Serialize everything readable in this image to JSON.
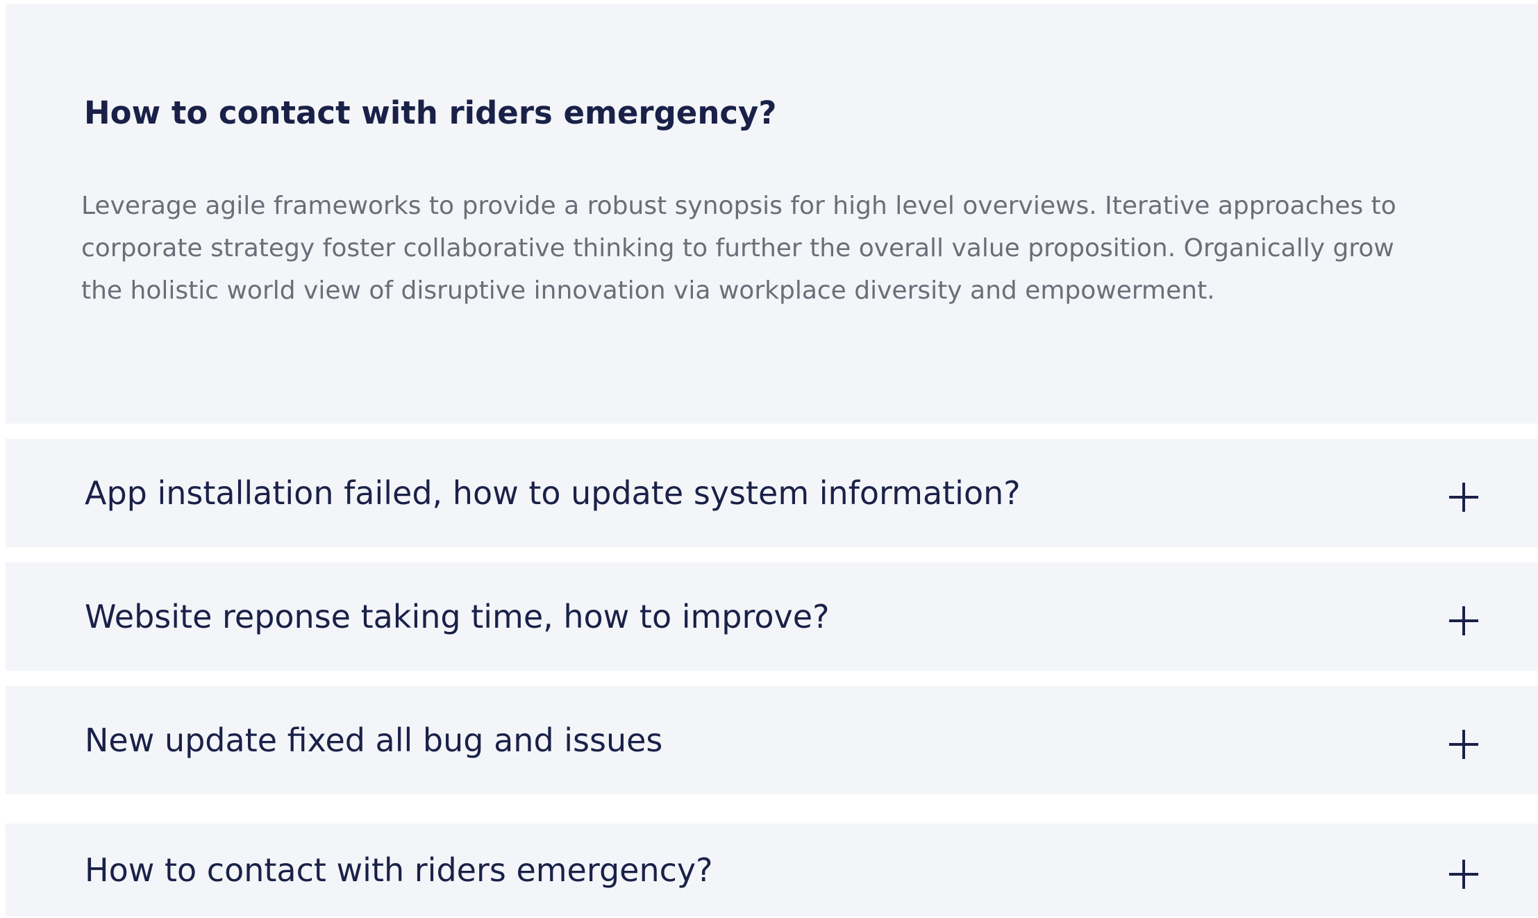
{
  "faq": {
    "items": [
      {
        "question": "How to contact with riders emergency?",
        "answer": "Leverage agile frameworks to provide a robust synopsis for high level overviews. Iterative approaches to corporate strategy foster collaborative thinking to further the overall value proposition. Organically grow the holistic world view of disruptive innovation via workplace diversity and empowerment.",
        "expanded": true
      },
      {
        "question": "App installation failed, how to update system information?",
        "expanded": false,
        "toggle_icon": "plus-icon"
      },
      {
        "question": "Website reponse taking time, how to improve?",
        "expanded": false,
        "toggle_icon": "plus-icon"
      },
      {
        "question": "New update fixed all bug and issues",
        "expanded": false,
        "toggle_icon": "plus-icon"
      },
      {
        "question": "How to contact with riders emergency?",
        "expanded": false,
        "toggle_icon": "plus-icon"
      }
    ]
  },
  "colors": {
    "item_background": "#f4f5f9",
    "heading_text": "#1a2148",
    "body_text": "#6b6e78"
  }
}
